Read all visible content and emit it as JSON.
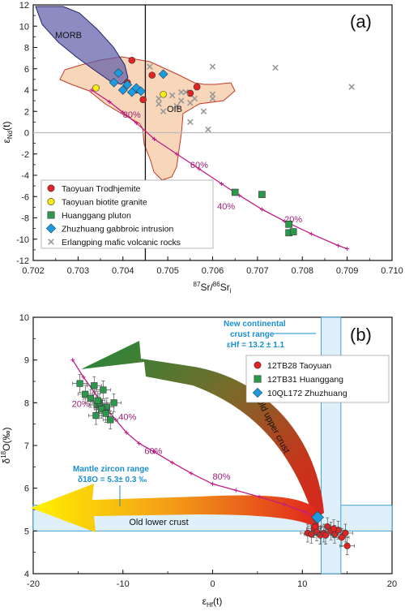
{
  "chart_data": [
    {
      "type": "scatter",
      "panel_label": "(a)",
      "xlabel": "87Sr/86Sri",
      "ylabel": "εNd(t)",
      "xlim": [
        0.702,
        0.71
      ],
      "ylim": [
        -12,
        12
      ],
      "x_ticks": [
        "0.702",
        "0.703",
        "0.704",
        "0.705",
        "0.706",
        "0.707",
        "0.708",
        "0.709",
        "0.710"
      ],
      "y_ticks": [
        "12",
        "10",
        "8",
        "6",
        "4",
        "2",
        "0",
        "-2",
        "-4",
        "-6",
        "-8",
        "-10",
        "-12"
      ],
      "field_labels": {
        "morb": "MORB",
        "oib": "OIB"
      },
      "mixing_labels": [
        {
          "text": "80%",
          "x": 0.7042,
          "y": 1.4
        },
        {
          "text": "60%",
          "x": 0.7057,
          "y": -3.3
        },
        {
          "text": "40%",
          "x": 0.7063,
          "y": -7.2
        },
        {
          "text": "20%",
          "x": 0.7078,
          "y": -8.4
        }
      ],
      "mixing_curve": {
        "x": [
          0.7033,
          0.7037,
          0.704,
          0.7043,
          0.7047,
          0.7052,
          0.7057,
          0.7062,
          0.7066,
          0.7071,
          0.7076,
          0.7082,
          0.7088,
          0.709
        ],
        "y": [
          4.0,
          2.9,
          1.9,
          0.9,
          -0.6,
          -2.0,
          -3.4,
          -4.8,
          -5.9,
          -7.2,
          -8.3,
          -9.5,
          -10.6,
          -10.9
        ]
      },
      "series": [
        {
          "name": "Taoyuan Trodhjemite",
          "marker": "circle",
          "color": "#e32222",
          "x": [
            0.7042,
            0.7041,
            0.7043,
            0.70445,
            0.70465,
            0.7055,
            0.70565
          ],
          "y": [
            6.8,
            4.7,
            4.0,
            3.1,
            5.4,
            3.7,
            4.3
          ]
        },
        {
          "name": "Taoyuan biotite granite",
          "marker": "circle",
          "color": "#f6ec10",
          "x": [
            0.7034,
            0.7049
          ],
          "y": [
            4.2,
            3.6
          ]
        },
        {
          "name": "Huanggang pluton",
          "marker": "square",
          "color": "#2a9a4a",
          "x": [
            0.7065,
            0.7071,
            0.7077,
            0.7077,
            0.7078
          ],
          "y": [
            -5.6,
            -5.8,
            -8.6,
            -9.4,
            -9.3
          ]
        },
        {
          "name": "Zhuzhuang gabbroic intrusion",
          "marker": "diamond",
          "color": "#1e9be0",
          "x": [
            0.7039,
            0.704,
            0.7041,
            0.7042,
            0.7043,
            0.7044,
            0.7038,
            0.7049
          ],
          "y": [
            5.6,
            4.0,
            4.5,
            3.8,
            4.2,
            3.9,
            4.7,
            5.5
          ]
        },
        {
          "name": "Erlangping mafic volcanic rocks",
          "marker": "x",
          "color": "#999999",
          "x": [
            0.7046,
            0.7048,
            0.7051,
            0.7052,
            0.7053,
            0.7054,
            0.7055,
            0.7056,
            0.7058,
            0.706,
            0.706,
            0.7074,
            0.7048,
            0.7049,
            0.7053,
            0.7055,
            0.7059,
            0.7091,
            0.706
          ],
          "y": [
            6.2,
            3.2,
            3.5,
            2.5,
            3.0,
            3.8,
            1.0,
            3.2,
            2.0,
            6.2,
            3.6,
            6.1,
            2.7,
            2.0,
            3.8,
            2.8,
            0.3,
            4.3,
            3.2
          ]
        }
      ]
    },
    {
      "type": "scatter",
      "panel_label": "(b)",
      "xlabel": "εHf(t)",
      "ylabel": "δ18O(‰)",
      "xlim": [
        -20,
        20
      ],
      "ylim": [
        4,
        10
      ],
      "x_ticks": [
        "-20",
        "-10",
        "0",
        "10",
        "20"
      ],
      "y_ticks": [
        "10",
        "9",
        "8",
        "7",
        "6",
        "5",
        "4"
      ],
      "annotations": {
        "old_upper_crust": "Old upper crust",
        "old_lower_crust": "Old lower crust",
        "new_crust_title_1": "New continental",
        "new_crust_title_2": "crust range",
        "new_crust_value": "εHf = 13.2 ± 1.1",
        "mantle_title": "Mantle zircon range",
        "mantle_value": "δ18O = 5.3± 0.3 ‰"
      },
      "mantle_band_y": [
        5.0,
        5.6
      ],
      "new_crust_band_x": [
        12.1,
        14.3
      ],
      "mixing_labels": [
        {
          "text": "20%",
          "x": -14.7,
          "y": 7.9
        },
        {
          "text": "40%",
          "x": -9.5,
          "y": 7.6
        },
        {
          "text": "60%",
          "x": -6.6,
          "y": 6.8
        },
        {
          "text": "80%",
          "x": 1.0,
          "y": 6.2
        }
      ],
      "mixing_curve": {
        "x": [
          -15.6,
          -14.4,
          -13.2,
          -12.0,
          -10.8,
          -9.6,
          -8.2,
          -6.5,
          -4.5,
          -2.4,
          0.0,
          2.6,
          5.2,
          8.0,
          10.2,
          11.6
        ],
        "y": [
          9.0,
          8.6,
          8.25,
          7.9,
          7.6,
          7.3,
          7.05,
          6.85,
          6.6,
          6.35,
          6.1,
          5.95,
          5.8,
          5.62,
          5.45,
          5.3
        ]
      },
      "series": [
        {
          "name": "12TB28 Taoyuan",
          "marker": "circle",
          "color": "#e32222",
          "x": [
            10.6,
            11.0,
            11.3,
            11.6,
            12.0,
            12.4,
            12.8,
            13.2,
            13.6,
            14.0,
            14.4,
            14.8,
            15.0,
            11.4,
            12.6,
            13.5
          ],
          "y": [
            4.95,
            4.92,
            5.05,
            4.98,
            4.9,
            4.95,
            5.1,
            5.0,
            4.92,
            5.02,
            4.85,
            4.95,
            4.65,
            5.1,
            4.9,
            5.05
          ]
        },
        {
          "name": "12TB31 Huanggang",
          "marker": "square",
          "color": "#2a9a4a",
          "x": [
            -14.8,
            -14.2,
            -13.6,
            -13.2,
            -12.9,
            -12.6,
            -12.2,
            -11.8,
            -11.4,
            -11.0,
            -13.0,
            -12.4,
            -11.9,
            -12.8
          ],
          "y": [
            8.45,
            8.2,
            8.1,
            8.4,
            7.95,
            8.0,
            8.3,
            7.9,
            7.6,
            8.0,
            7.7,
            7.85,
            7.75,
            8.05
          ]
        },
        {
          "name": "10QL172 Zhuzhuang",
          "marker": "diamond",
          "color": "#1e9be0",
          "x": [
            11.7
          ],
          "y": [
            5.32
          ]
        }
      ]
    }
  ]
}
